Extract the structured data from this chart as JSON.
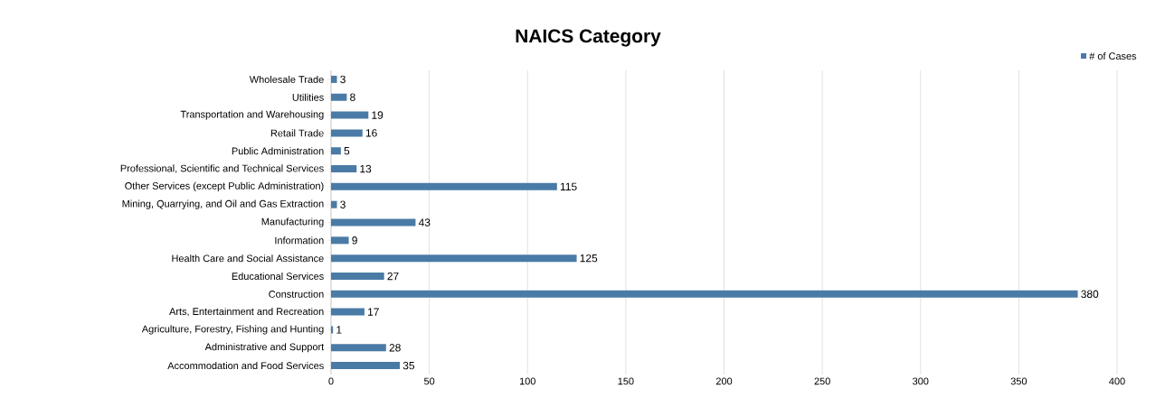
{
  "chart_data": {
    "type": "bar",
    "orientation": "horizontal",
    "title": "NAICS Category",
    "categories": [
      "Wholesale Trade",
      "Utilities",
      "Transportation and Warehousing",
      "Retail Trade",
      "Public Administration",
      "Professional, Scientific and Technical Services",
      "Other Services (except Public Administration)",
      "Mining, Quarrying, and Oil and Gas Extraction",
      "Manufacturing",
      "Information",
      "Health Care and Social Assistance",
      "Educational Services",
      "Construction",
      "Arts, Entertainment and Recreation",
      "Agriculture, Forestry, Fishing and Hunting",
      "Administrative and Support",
      "Accommodation and Food Services"
    ],
    "series": [
      {
        "name": "# of Cases",
        "color": "#4a7ba6",
        "values": [
          3,
          8,
          19,
          16,
          5,
          13,
          115,
          3,
          43,
          9,
          125,
          27,
          380,
          17,
          1,
          28,
          35
        ]
      }
    ],
    "xlim": [
      0,
      400
    ],
    "xticks": [
      0,
      50,
      100,
      150,
      200,
      250,
      300,
      350,
      400
    ],
    "grid": "x",
    "legend": "top right",
    "data_labels": true
  }
}
